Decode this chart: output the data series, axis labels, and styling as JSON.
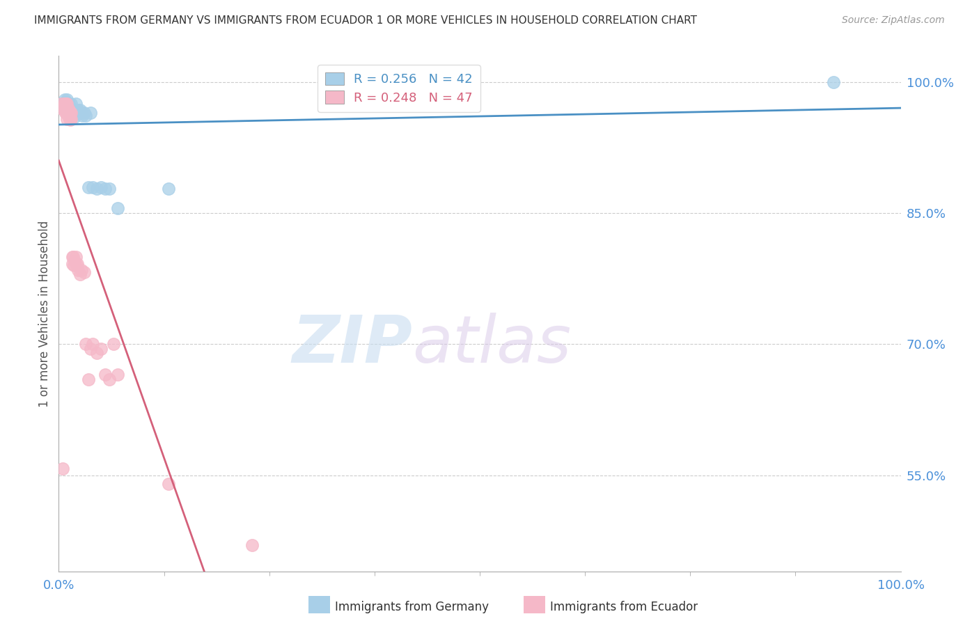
{
  "title": "IMMIGRANTS FROM GERMANY VS IMMIGRANTS FROM ECUADOR 1 OR MORE VEHICLES IN HOUSEHOLD CORRELATION CHART",
  "source": "Source: ZipAtlas.com",
  "ylabel": "1 or more Vehicles in Household",
  "xlim": [
    0.0,
    1.0
  ],
  "ylim": [
    0.44,
    1.03
  ],
  "y_tick_values": [
    0.55,
    0.7,
    0.85,
    1.0
  ],
  "y_tick_labels": [
    "55.0%",
    "70.0%",
    "85.0%",
    "100.0%"
  ],
  "germany_R": 0.256,
  "germany_N": 42,
  "ecuador_R": 0.248,
  "ecuador_N": 47,
  "germany_color": "#a8cfe8",
  "ecuador_color": "#f5b8c8",
  "germany_line_color": "#4a90c4",
  "ecuador_line_color": "#d4607a",
  "legend_label_germany": "Immigrants from Germany",
  "legend_label_ecuador": "Immigrants from Ecuador",
  "watermark_zip": "ZIP",
  "watermark_atlas": "atlas",
  "background_color": "#ffffff",
  "grid_color": "#cccccc",
  "title_color": "#333333",
  "axis_label_color": "#555555",
  "tick_color": "#4a90d9",
  "germany_x": [
    0.005,
    0.007,
    0.008,
    0.009,
    0.009,
    0.01,
    0.01,
    0.01,
    0.011,
    0.011,
    0.012,
    0.012,
    0.013,
    0.013,
    0.014,
    0.014,
    0.015,
    0.015,
    0.016,
    0.017,
    0.018,
    0.019,
    0.02,
    0.02,
    0.022,
    0.023,
    0.024,
    0.025,
    0.027,
    0.028,
    0.03,
    0.032,
    0.035,
    0.038,
    0.04,
    0.045,
    0.05,
    0.055,
    0.06,
    0.07,
    0.13,
    0.92
  ],
  "germany_y": [
    0.975,
    0.98,
    0.978,
    0.972,
    0.968,
    0.98,
    0.975,
    0.97,
    0.975,
    0.968,
    0.975,
    0.97,
    0.972,
    0.965,
    0.97,
    0.962,
    0.975,
    0.965,
    0.97,
    0.968,
    0.965,
    0.96,
    0.975,
    0.968,
    0.965,
    0.968,
    0.965,
    0.968,
    0.965,
    0.962,
    0.965,
    0.962,
    0.88,
    0.965,
    0.88,
    0.878,
    0.88,
    0.878,
    0.878,
    0.856,
    0.878,
    1.0
  ],
  "ecuador_x": [
    0.003,
    0.004,
    0.005,
    0.006,
    0.007,
    0.007,
    0.008,
    0.008,
    0.009,
    0.009,
    0.01,
    0.01,
    0.01,
    0.011,
    0.011,
    0.012,
    0.012,
    0.013,
    0.013,
    0.014,
    0.014,
    0.015,
    0.015,
    0.016,
    0.016,
    0.017,
    0.018,
    0.019,
    0.02,
    0.021,
    0.022,
    0.023,
    0.025,
    0.027,
    0.03,
    0.032,
    0.035,
    0.038,
    0.04,
    0.045,
    0.05,
    0.055,
    0.06,
    0.065,
    0.07,
    0.13,
    0.23
  ],
  "ecuador_y": [
    0.975,
    0.97,
    0.558,
    0.975,
    0.975,
    0.968,
    0.975,
    0.965,
    0.975,
    0.965,
    0.975,
    0.965,
    0.958,
    0.97,
    0.962,
    0.968,
    0.96,
    0.965,
    0.958,
    0.965,
    0.957,
    0.965,
    0.958,
    0.8,
    0.792,
    0.8,
    0.79,
    0.795,
    0.8,
    0.79,
    0.792,
    0.785,
    0.78,
    0.785,
    0.782,
    0.7,
    0.66,
    0.695,
    0.7,
    0.69,
    0.695,
    0.665,
    0.66,
    0.7,
    0.665,
    0.54,
    0.47
  ]
}
